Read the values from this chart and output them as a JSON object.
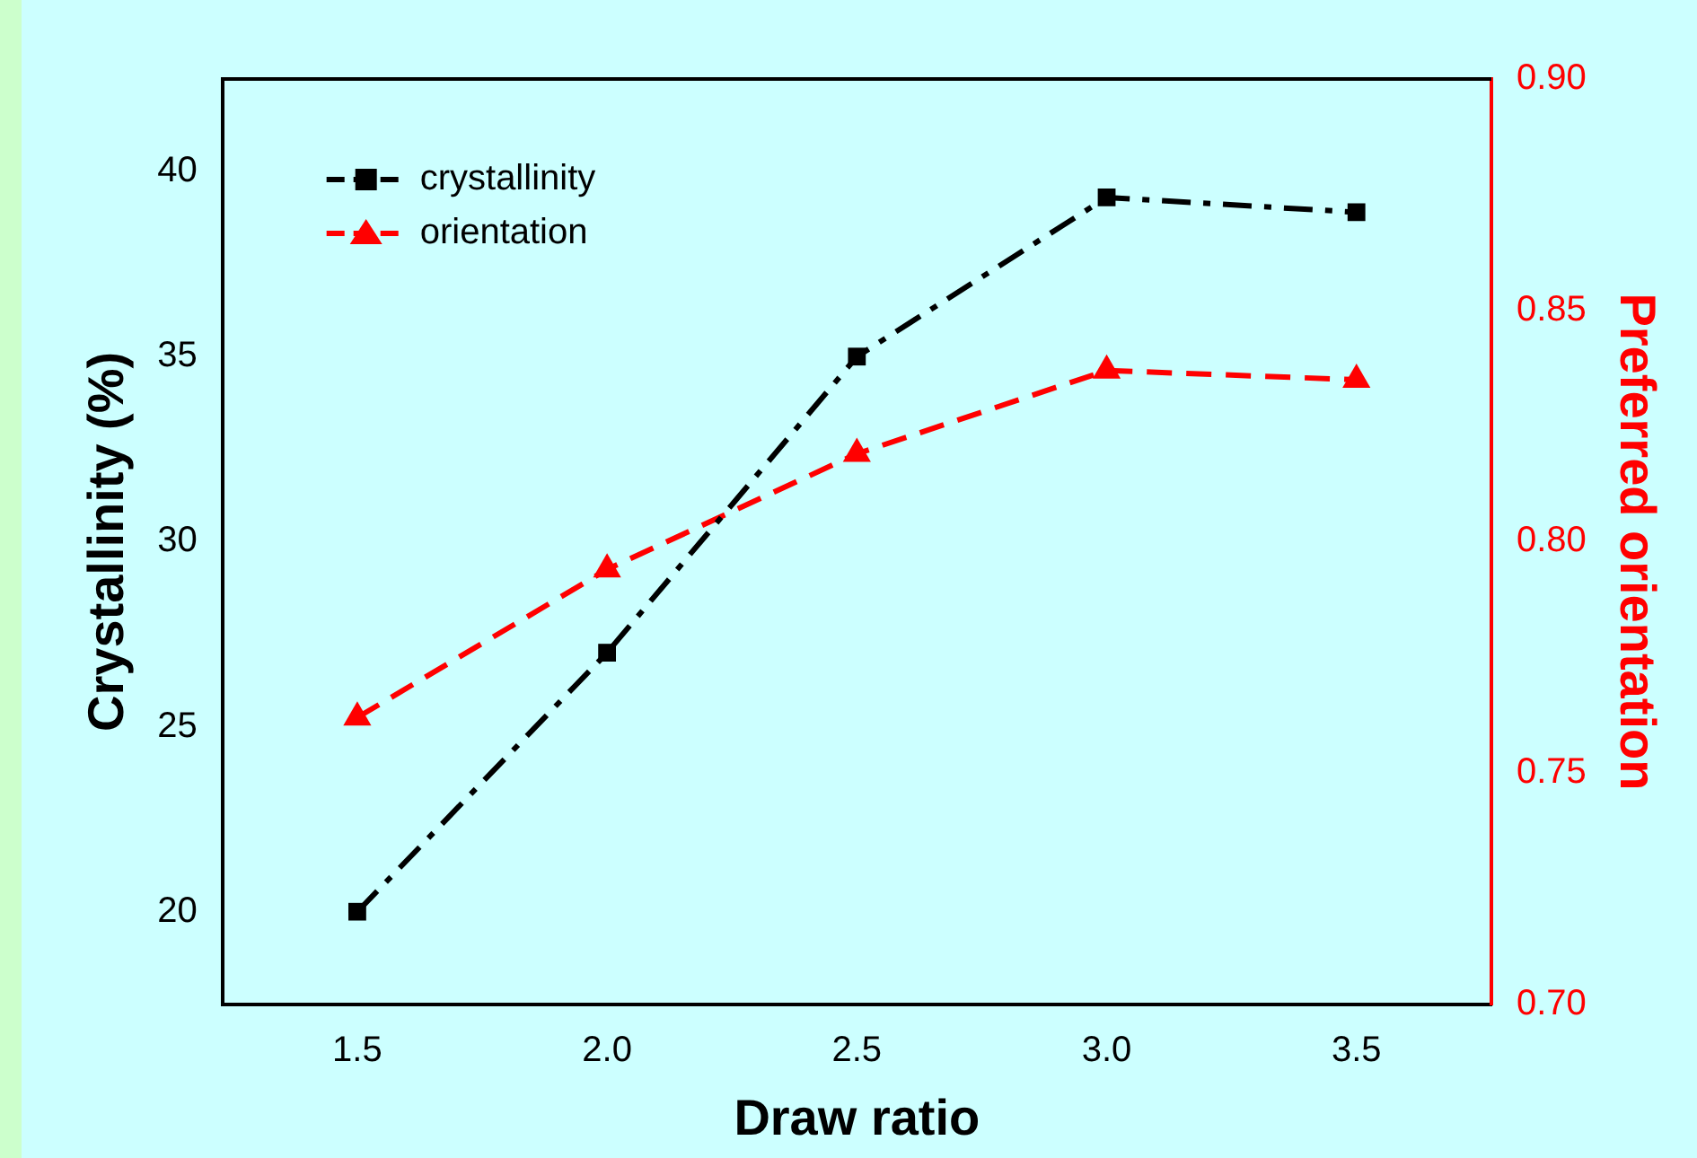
{
  "chart_data": {
    "type": "line",
    "xlabel": "Draw ratio",
    "ylabel": "Crystallinity (%)",
    "y2label": "Preferred orientation",
    "x": [
      1.5,
      2.0,
      2.5,
      3.0,
      3.5
    ],
    "series": [
      {
        "name": "crystallinity",
        "color": "#000000",
        "values": [
          20,
          27,
          35,
          39.3,
          38.9
        ],
        "marker": "square",
        "line_style": "dashdot"
      },
      {
        "name": "orientation",
        "color": "#ff0000",
        "values": [
          0.762,
          0.794,
          0.819,
          0.837,
          0.835
        ],
        "axis": "y2",
        "marker": "triangle",
        "line_style": "dashed"
      }
    ],
    "xlim": [
      1.23,
      3.77
    ],
    "xticks": [
      {
        "value": 1.5,
        "label": "1.5"
      },
      {
        "value": 2.0,
        "label": "2.0"
      },
      {
        "value": 2.5,
        "label": "2.5"
      },
      {
        "value": 3.0,
        "label": "3.0"
      },
      {
        "value": 3.5,
        "label": "3.5"
      }
    ],
    "ylim": [
      17.5,
      42.5
    ],
    "yticks": [
      20,
      25,
      30,
      35,
      40
    ],
    "y2lim": [
      0.7,
      0.9
    ],
    "y2ticks": [
      {
        "value": 0.7,
        "label": "0.70"
      },
      {
        "value": 0.75,
        "label": "0.75"
      },
      {
        "value": 0.8,
        "label": "0.80"
      },
      {
        "value": 0.85,
        "label": "0.85"
      },
      {
        "value": 0.9,
        "label": "0.90"
      }
    ],
    "grid": false,
    "legend": "top left"
  }
}
